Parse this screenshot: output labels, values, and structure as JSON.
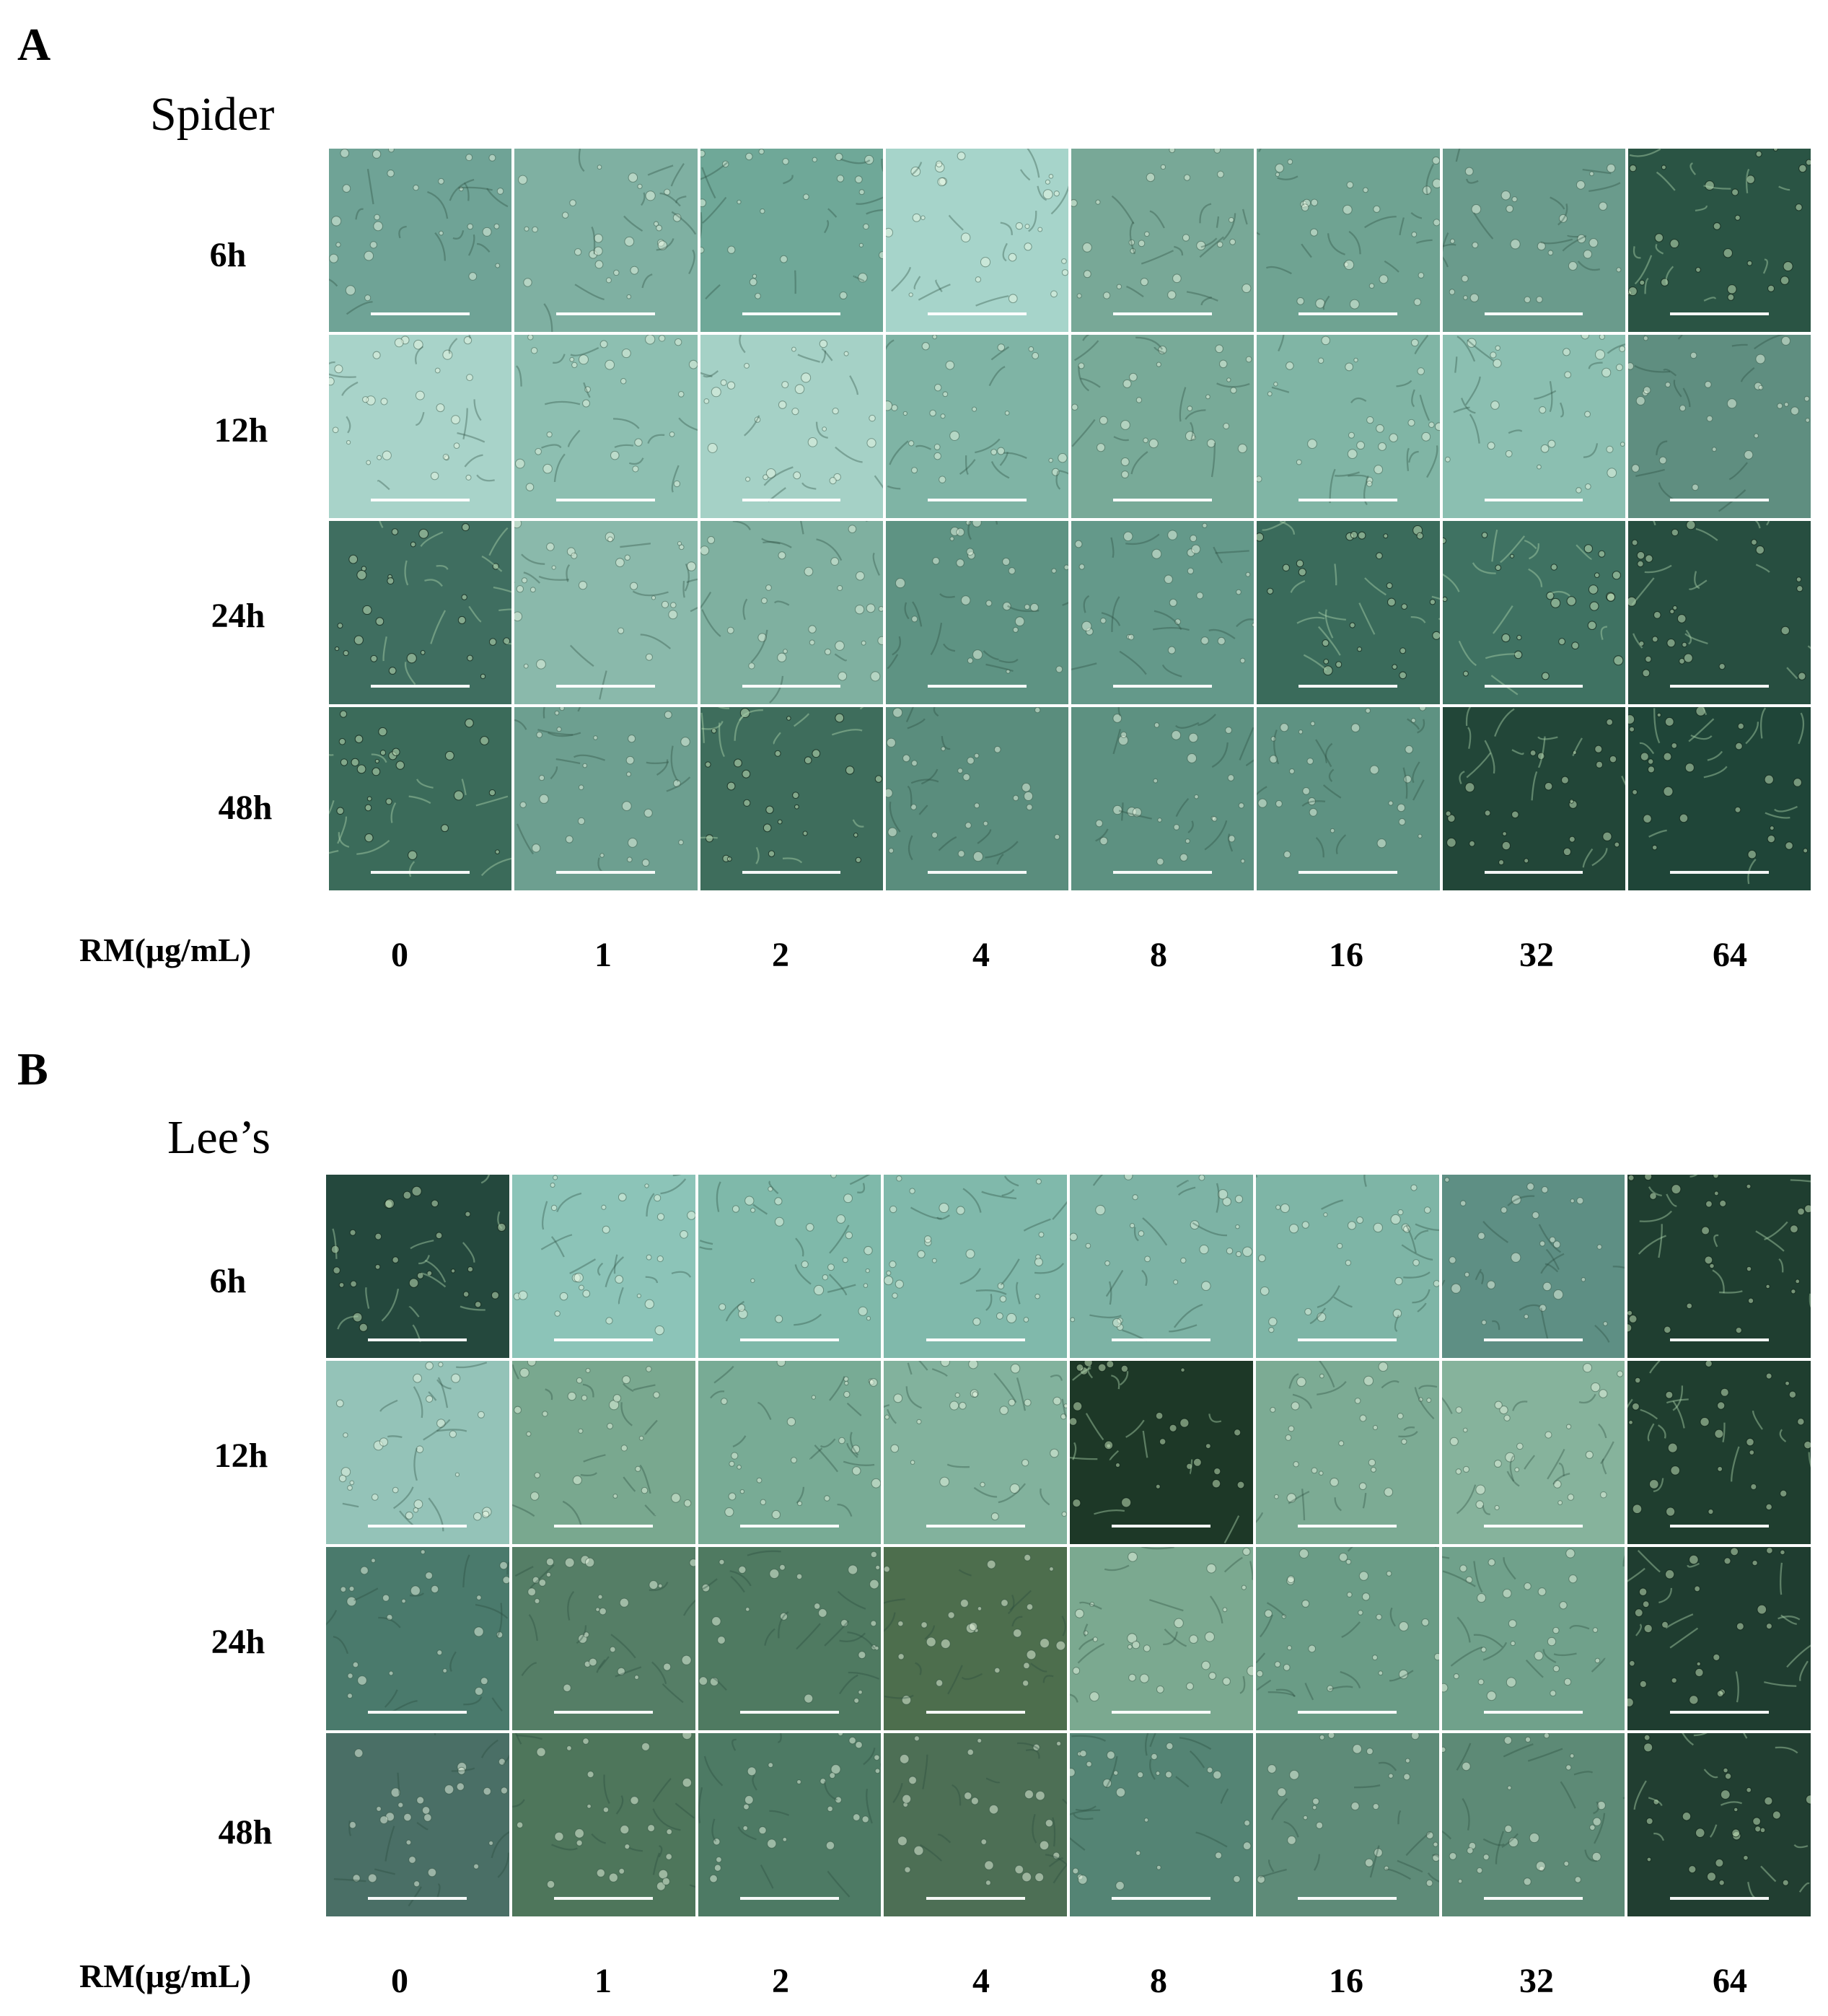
{
  "panels": [
    {
      "letter": "A",
      "medium": "Spider",
      "time_points": [
        "6h",
        "12h",
        "24h",
        "48h"
      ],
      "axis_title": "RM(μg/mL)",
      "concentrations": [
        "0",
        "1",
        "2",
        "4",
        "8",
        "16",
        "32",
        "64"
      ],
      "tile_colors": [
        [
          "#6fa396",
          "#7fb0a2",
          "#6fa898",
          "#a6d4ca",
          "#78a897",
          "#6fa392",
          "#6a9b8c",
          "#2a5444"
        ],
        [
          "#a8d3c9",
          "#8dbfb1",
          "#a5d1c6",
          "#7fb4a5",
          "#78aa98",
          "#80b5a5",
          "#8bbfb1",
          "#5f8e80"
        ],
        [
          "#3f6e60",
          "#8ab9ab",
          "#7fb0a0",
          "#5e9383",
          "#64998a",
          "#3a6b5b",
          "#3f7262",
          "#274e40"
        ],
        [
          "#3b6b5a",
          "#6d9f90",
          "#3e6d5c",
          "#5a8d7d",
          "#5d9181",
          "#5e9282",
          "#224638",
          "#1f4538"
        ]
      ]
    },
    {
      "letter": "B",
      "medium": "Lee’s",
      "time_points": [
        "6h",
        "12h",
        "24h",
        "48h"
      ],
      "axis_title": "RM(μg/mL)",
      "concentrations": [
        "0",
        "1",
        "2",
        "4",
        "8",
        "16",
        "32",
        "64"
      ],
      "tile_colors": [
        [
          "#24483d",
          "#8cc4b8",
          "#7fb9aa",
          "#80b9ab",
          "#7db3a5",
          "#7eb5a6",
          "#5e8f84",
          "#1f3e30"
        ],
        [
          "#94c3b8",
          "#79a88f",
          "#78ab95",
          "#82b29d",
          "#1d3827",
          "#7cab94",
          "#86b39c",
          "#1f3e2f"
        ],
        [
          "#4a7a6c",
          "#557e66",
          "#4f7a61",
          "#4d6e4d",
          "#7ba990",
          "#6a9c86",
          "#70a18b",
          "#1f3d30"
        ],
        [
          "#4a6f66",
          "#4e765b",
          "#4d7a64",
          "#4d6f55",
          "#548474",
          "#5e8b78",
          "#5d8a76",
          "#213e31"
        ]
      ]
    }
  ],
  "colors": {
    "gap": "#ffffff",
    "scale_bar": "#ffffff"
  }
}
